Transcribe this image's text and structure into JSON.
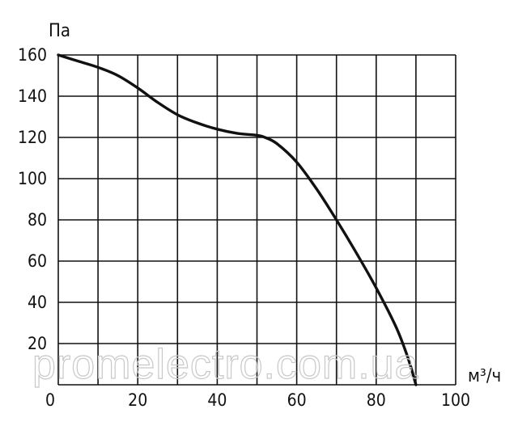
{
  "chart_data": {
    "type": "line",
    "ylabel": "Па",
    "xlabel": "м³/ч",
    "xlim": [
      0,
      100
    ],
    "ylim": [
      0,
      160
    ],
    "grid": true,
    "x_ticks": [
      "0",
      "20",
      "40",
      "60",
      "80",
      "100"
    ],
    "y_ticks": [
      "20",
      "40",
      "60",
      "80",
      "100",
      "120",
      "140",
      "160"
    ],
    "series": [
      {
        "color": "#111111",
        "x": [
          0,
          5,
          10,
          15,
          20,
          25,
          30,
          35,
          40,
          45,
          50,
          52,
          55,
          60,
          65,
          70,
          75,
          80,
          85,
          88,
          90
        ],
        "y": [
          160,
          157,
          154,
          150,
          144,
          137,
          131,
          127,
          124,
          122,
          121,
          120,
          117,
          108,
          95,
          80,
          64,
          47,
          28,
          13,
          0
        ]
      }
    ]
  },
  "watermark": "promelectro.com.ua"
}
